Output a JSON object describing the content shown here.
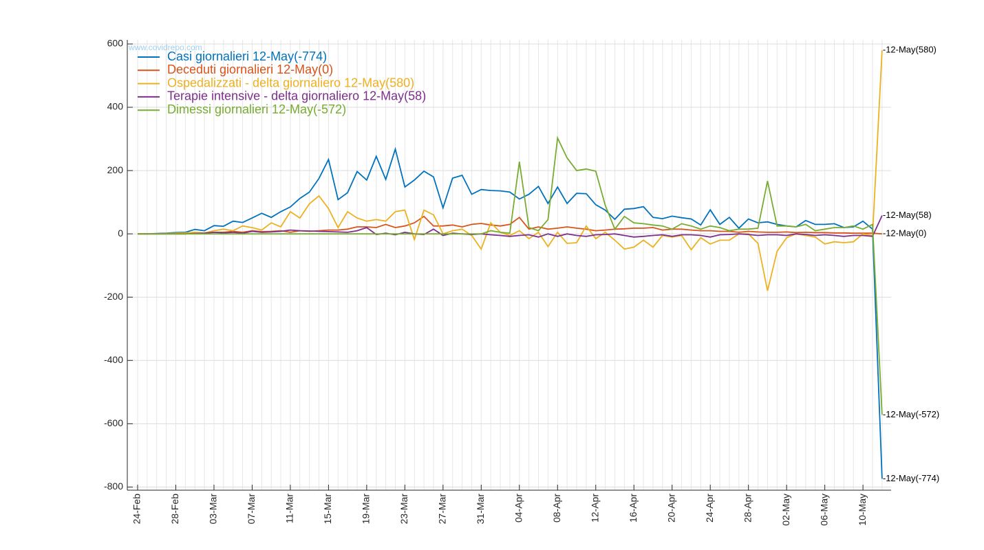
{
  "chart_data": {
    "type": "line",
    "watermark": "www.covidrepo.com",
    "legend": "top-left",
    "grid": true,
    "categories": [
      "24-Feb",
      null,
      null,
      null,
      "28-Feb",
      null,
      null,
      null,
      "03-Mar",
      null,
      null,
      null,
      "07-Mar",
      null,
      null,
      null,
      "11-Mar",
      null,
      null,
      null,
      "15-Mar",
      null,
      null,
      null,
      "19-Mar",
      null,
      null,
      null,
      "23-Mar",
      null,
      null,
      null,
      "27-Mar",
      null,
      null,
      null,
      "31-Mar",
      null,
      null,
      null,
      "04-Apr",
      null,
      null,
      null,
      "08-Apr",
      null,
      null,
      null,
      "12-Apr",
      null,
      null,
      null,
      "16-Apr",
      null,
      null,
      null,
      "20-Apr",
      null,
      null,
      null,
      "24-Apr",
      null,
      null,
      null,
      "28-Apr",
      null,
      null,
      null,
      "02-May",
      null,
      null,
      null,
      "06-May",
      null,
      null,
      null,
      "10-May",
      null,
      null
    ],
    "ylim": [
      -810,
      613
    ],
    "yticks": [
      -800,
      -600,
      -400,
      -200,
      0,
      200,
      400,
      600
    ],
    "series": [
      {
        "name": "Casi giornalieri 12-May(-774)",
        "color": "#0072bd",
        "end_label": "-12-May(-774)",
        "values": [
          0,
          0,
          1,
          2,
          4,
          5,
          14,
          10,
          26,
          24,
          40,
          36,
          50,
          65,
          52,
          70,
          85,
          112,
          132,
          175,
          235,
          108,
          130,
          197,
          170,
          245,
          172,
          268,
          148,
          170,
          198,
          180,
          82,
          176,
          185,
          125,
          140,
          137,
          136,
          132,
          110,
          125,
          150,
          96,
          148,
          96,
          128,
          127,
          92,
          75,
          46,
          78,
          80,
          86,
          52,
          48,
          56,
          51,
          47,
          28,
          76,
          30,
          52,
          18,
          47,
          35,
          38,
          30,
          25,
          22,
          42,
          30,
          30,
          32,
          20,
          22,
          40,
          15,
          -774
        ]
      },
      {
        "name": "Deceduti giornalieri 12-May(0)",
        "color": "#d95319",
        "end_label": "-12-May(0)",
        "values": [
          0,
          0,
          0,
          0,
          0,
          0,
          2,
          3,
          5,
          5,
          8,
          5,
          10,
          7,
          8,
          10,
          5,
          10,
          8,
          10,
          12,
          12,
          15,
          22,
          22,
          20,
          30,
          20,
          25,
          35,
          55,
          25,
          25,
          28,
          22,
          30,
          33,
          28,
          25,
          30,
          52,
          15,
          22,
          15,
          18,
          22,
          18,
          15,
          10,
          12,
          15,
          16,
          18,
          18,
          20,
          12,
          15,
          15,
          12,
          10,
          10,
          8,
          8,
          5,
          8,
          6,
          5,
          5,
          6,
          4,
          5,
          4,
          4,
          3,
          3,
          2,
          2,
          2,
          0
        ]
      },
      {
        "name": "Ospedalizzati - delta giornaliero 12-May(580)",
        "color": "#edb120",
        "end_label": "-12-May(580)",
        "values": [
          0,
          0,
          0,
          1,
          2,
          3,
          5,
          3,
          10,
          15,
          10,
          25,
          20,
          12,
          35,
          22,
          70,
          50,
          95,
          120,
          80,
          20,
          70,
          50,
          40,
          45,
          40,
          70,
          75,
          -18,
          75,
          60,
          0,
          10,
          15,
          -5,
          -48,
          35,
          5,
          -5,
          10,
          -15,
          5,
          -40,
          5,
          -30,
          -28,
          25,
          -15,
          5,
          -20,
          -48,
          -42,
          -20,
          -42,
          -5,
          -10,
          -5,
          -50,
          -12,
          -32,
          -20,
          -20,
          0,
          0,
          -30,
          -180,
          -55,
          -12,
          0,
          -5,
          -10,
          -32,
          -25,
          -28,
          -25,
          0,
          -5,
          580
        ]
      },
      {
        "name": "Terapie intensive - delta giornaliero 12-May(58)",
        "color": "#7e2f8e",
        "end_label": "-12-May(58)",
        "values": [
          0,
          0,
          0,
          0,
          0,
          0,
          1,
          2,
          5,
          3,
          5,
          2,
          8,
          5,
          6,
          8,
          12,
          10,
          9,
          8,
          7,
          6,
          5,
          10,
          20,
          -2,
          2,
          -3,
          5,
          0,
          -2,
          15,
          -5,
          2,
          0,
          -2,
          0,
          -3,
          -5,
          -8,
          -5,
          -3,
          -10,
          0,
          -8,
          0,
          -5,
          -8,
          -3,
          -2,
          0,
          -5,
          -10,
          -8,
          -5,
          -3,
          -8,
          -3,
          -3,
          -5,
          -10,
          -3,
          -2,
          0,
          -2,
          -5,
          -3,
          -3,
          -5,
          0,
          -2,
          -5,
          -3,
          -5,
          -8,
          -5,
          -5,
          -8,
          58
        ]
      },
      {
        "name": "Dimessi giornalieri 12-May(-572)",
        "color": "#77ac30",
        "end_label": "-12-May(-572)",
        "values": [
          0,
          0,
          0,
          0,
          0,
          0,
          0,
          0,
          0,
          0,
          0,
          0,
          0,
          0,
          0,
          0,
          0,
          0,
          0,
          0,
          0,
          0,
          0,
          0,
          0,
          0,
          0,
          0,
          0,
          0,
          0,
          0,
          0,
          0,
          0,
          0,
          0,
          10,
          5,
          2,
          228,
          20,
          10,
          45,
          303,
          240,
          200,
          205,
          198,
          90,
          15,
          55,
          35,
          32,
          28,
          25,
          15,
          32,
          25,
          15,
          25,
          20,
          10,
          15,
          15,
          18,
          167,
          25,
          25,
          22,
          30,
          10,
          15,
          20,
          20,
          25,
          15,
          30,
          -572
        ]
      }
    ]
  }
}
